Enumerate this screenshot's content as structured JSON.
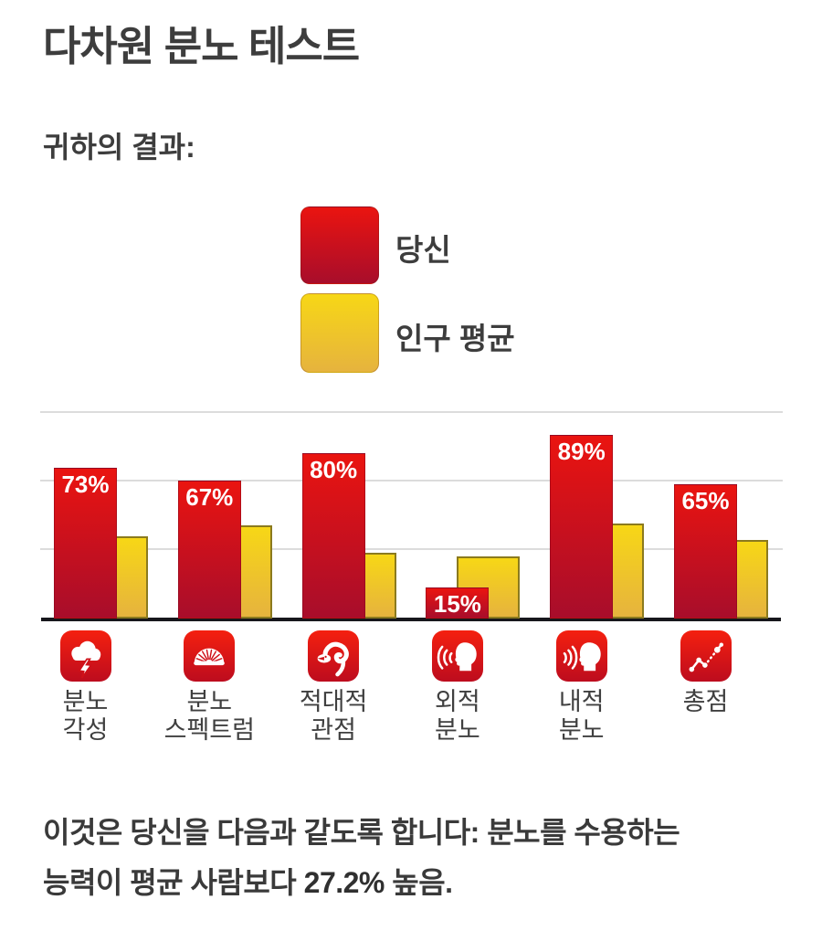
{
  "page": {
    "title": "다차원 분노 테스트",
    "subtitle": "귀하의 결과:",
    "footer": {
      "line1": "이것은 당신을 다음과 같도록 합니다: 분노를 수용하는",
      "line2_before": "능력이 평균 사람보다 ",
      "highlight": "27.2%",
      "line2_after": " 높음."
    }
  },
  "colors": {
    "you_bar_top": "#ea1410",
    "you_bar_bottom": "#a80d2b",
    "avg_bar_top": "#f7d716",
    "avg_bar_bottom": "#e6b33e",
    "avg_bar_border": "#8b7a1e",
    "icon_red": "#cf1019",
    "axis": "#17171c",
    "gridline": "#dcdcdc",
    "text": "#3e3e3e",
    "value_label": "#ffffff"
  },
  "chart_data": {
    "type": "bar",
    "title": "",
    "xlabel": "",
    "ylabel": "",
    "categories": [
      "분노 각성",
      "분노 스펙트럼",
      "적대적 관점",
      "외적 분노",
      "내적 분노",
      "총점"
    ],
    "category_lines": [
      [
        "분노",
        "각성"
      ],
      [
        "분노",
        "스펙트럼"
      ],
      [
        "적대적",
        "관점"
      ],
      [
        "외적",
        "분노"
      ],
      [
        "내적",
        "분노"
      ],
      [
        "총점"
      ]
    ],
    "slugs": [
      "anger-arousal",
      "anger-spectrum",
      "hostile-outlook",
      "external-anger",
      "internal-anger",
      "total-score"
    ],
    "icons": [
      "storm-cloud-lightning-icon",
      "fan-spectrum-icon",
      "cobra-snake-icon",
      "shouting-head-icon",
      "sound-into-head-icon",
      "connected-dots-icon"
    ],
    "series": [
      {
        "name": "당신",
        "values": [
          73,
          67,
          80,
          15,
          89,
          65
        ],
        "labels": [
          "73%",
          "67%",
          "80%",
          "15%",
          "89%",
          "65%"
        ]
      },
      {
        "name": "인구 평균",
        "values": [
          40,
          45,
          32,
          30,
          46,
          38
        ]
      }
    ],
    "ylim": [
      0,
      100
    ],
    "gridlines_pct": [
      33.3,
      66.7,
      100
    ],
    "grid": "horizontal",
    "legend_position": "top-center"
  }
}
